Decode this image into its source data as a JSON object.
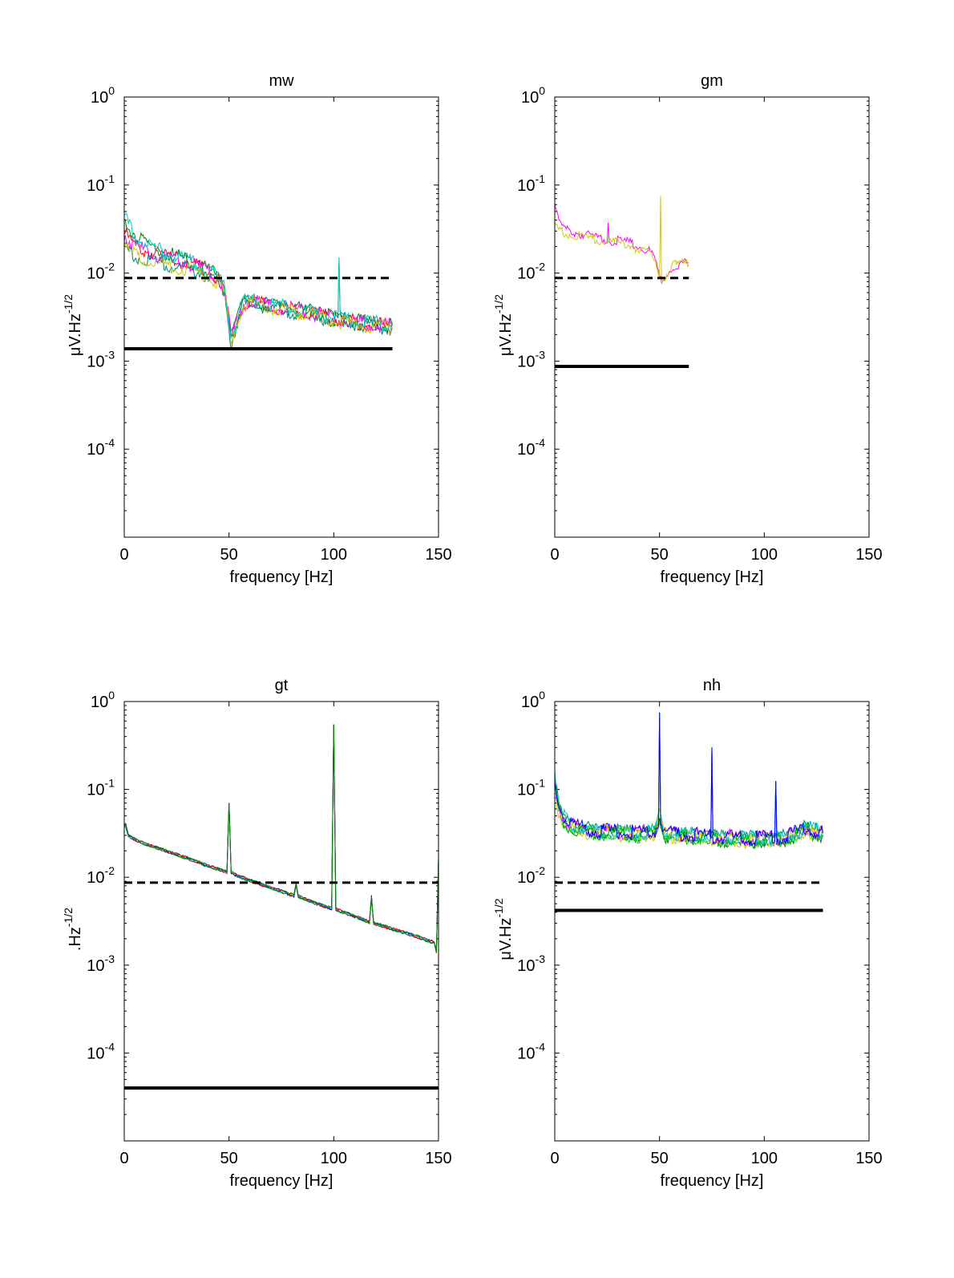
{
  "figure": {
    "line_colors": [
      "#ff0000",
      "#ff00ff",
      "#00cc00",
      "#008080",
      "#cccc00",
      "#0000ff",
      "#008000",
      "#00cccc"
    ]
  },
  "chart_data": [
    {
      "type": "line",
      "title": "mw",
      "xlabel": "frequency [Hz]",
      "ylabel": "μV.Hz-1/2",
      "ylabel_parts": [
        "μV.Hz",
        "-1/2"
      ],
      "xlim": [
        0,
        150
      ],
      "ylim": [
        1e-05,
        1
      ],
      "yscale": "log",
      "xticks": [
        0,
        50,
        100,
        150
      ],
      "yticks": [
        {
          "base": "10",
          "exp": "0"
        },
        {
          "base": "10",
          "exp": "-1"
        },
        {
          "base": "10",
          "exp": "-2"
        },
        {
          "base": "10",
          "exp": "-3"
        },
        {
          "base": "10",
          "exp": "-4"
        }
      ],
      "ytick_values": [
        1,
        0.1,
        0.01,
        0.001,
        0.0001
      ],
      "grid": false,
      "reference_lines": [
        {
          "style": "dashed",
          "value": 0.0088,
          "x": [
            0,
            128
          ]
        },
        {
          "style": "solid",
          "value": 0.00138,
          "x": [
            0,
            128
          ]
        }
      ],
      "series": [
        {
          "x": [
            0,
            2,
            5,
            10,
            15,
            20,
            25,
            30,
            35,
            40,
            45,
            48,
            50,
            51,
            52,
            54,
            57,
            60,
            65,
            70,
            80,
            90,
            100,
            110,
            120,
            128
          ],
          "values": [
            0.028,
            0.025,
            0.021,
            0.018,
            0.0165,
            0.0155,
            0.0145,
            0.0132,
            0.0118,
            0.0105,
            0.0085,
            0.006,
            0.0028,
            0.0018,
            0.002,
            0.003,
            0.0046,
            0.0048,
            0.0045,
            0.0042,
            0.0039,
            0.0035,
            0.0031,
            0.0028,
            0.0026,
            0.0025
          ]
        },
        {
          "x": [
            0,
            2,
            5,
            10,
            15,
            20,
            25,
            30,
            35,
            40,
            45,
            48,
            50,
            51,
            52,
            54,
            57,
            60,
            65,
            70,
            80,
            90,
            100,
            110,
            120,
            128
          ],
          "values": [
            0.02,
            0.018,
            0.016,
            0.0145,
            0.013,
            0.0125,
            0.0118,
            0.0112,
            0.0102,
            0.0095,
            0.0078,
            0.0055,
            0.0024,
            0.0015,
            0.0019,
            0.0029,
            0.0043,
            0.0046,
            0.0043,
            0.004,
            0.0037,
            0.0033,
            0.0029,
            0.0027,
            0.0025,
            0.0024
          ]
        },
        {
          "x": [
            0,
            2,
            5,
            10,
            15,
            20,
            25,
            30,
            35,
            40,
            45,
            48,
            50,
            51,
            52,
            54,
            57,
            60,
            65,
            70,
            80,
            90,
            100,
            102,
            102.5,
            103,
            110,
            120,
            128
          ],
          "values": [
            0.045,
            0.035,
            0.028,
            0.022,
            0.019,
            0.017,
            0.0155,
            0.014,
            0.0125,
            0.011,
            0.009,
            0.0065,
            0.003,
            0.002,
            0.0022,
            0.0032,
            0.0048,
            0.005,
            0.0047,
            0.0044,
            0.004,
            0.0036,
            0.0032,
            0.0031,
            0.015,
            0.0031,
            0.0029,
            0.0027,
            0.0026
          ]
        }
      ]
    },
    {
      "type": "line",
      "title": "gm",
      "xlabel": "frequency [Hz]",
      "ylabel": "μV.Hz-1/2",
      "ylabel_parts": [
        "μV.Hz",
        "-1/2"
      ],
      "xlim": [
        0,
        150
      ],
      "ylim": [
        1e-05,
        1
      ],
      "yscale": "log",
      "xticks": [
        0,
        50,
        100,
        150
      ],
      "yticks": [
        {
          "base": "10",
          "exp": "0"
        },
        {
          "base": "10",
          "exp": "-1"
        },
        {
          "base": "10",
          "exp": "-2"
        },
        {
          "base": "10",
          "exp": "-3"
        },
        {
          "base": "10",
          "exp": "-4"
        }
      ],
      "ytick_values": [
        1,
        0.1,
        0.01,
        0.001,
        0.0001
      ],
      "grid": false,
      "reference_lines": [
        {
          "style": "dashed",
          "value": 0.0088,
          "x": [
            0,
            64
          ]
        },
        {
          "style": "solid",
          "value": 0.00087,
          "x": [
            0,
            64
          ]
        }
      ],
      "series": [
        {
          "x": [
            0,
            1,
            3,
            5,
            10,
            15,
            20,
            25,
            25.5,
            26,
            30,
            35,
            40,
            45,
            48,
            50,
            51,
            52,
            54,
            57,
            60,
            64
          ],
          "values": [
            0.06,
            0.045,
            0.035,
            0.032,
            0.029,
            0.027,
            0.025,
            0.024,
            0.04,
            0.024,
            0.023,
            0.022,
            0.02,
            0.018,
            0.014,
            0.009,
            0.0075,
            0.0085,
            0.01,
            0.012,
            0.013,
            0.013
          ]
        },
        {
          "x": [
            0,
            1,
            3,
            5,
            10,
            15,
            20,
            25,
            30,
            35,
            40,
            45,
            48,
            50,
            50.5,
            51,
            52,
            54,
            57,
            60,
            64
          ],
          "values": [
            0.035,
            0.032,
            0.03,
            0.029,
            0.027,
            0.025,
            0.024,
            0.023,
            0.022,
            0.021,
            0.019,
            0.017,
            0.013,
            0.009,
            0.075,
            0.0085,
            0.0088,
            0.0105,
            0.0122,
            0.0128,
            0.0125
          ]
        }
      ]
    },
    {
      "type": "line",
      "title": "gt",
      "xlabel": "frequency [Hz]",
      "ylabel": ".Hz-1/2",
      "ylabel_parts": [
        ".Hz",
        "-1/2"
      ],
      "xlim": [
        0,
        150
      ],
      "ylim": [
        1e-05,
        1
      ],
      "yscale": "log",
      "xticks": [
        0,
        50,
        100,
        150
      ],
      "yticks": [
        {
          "base": "10",
          "exp": "0"
        },
        {
          "base": "10",
          "exp": "-1"
        },
        {
          "base": "10",
          "exp": "-2"
        },
        {
          "base": "10",
          "exp": "-3"
        },
        {
          "base": "10",
          "exp": "-4"
        }
      ],
      "ytick_values": [
        1,
        0.1,
        0.01,
        0.001,
        0.0001
      ],
      "grid": false,
      "reference_lines": [
        {
          "style": "dashed",
          "value": 0.0087,
          "x": [
            0,
            150
          ]
        },
        {
          "style": "solid",
          "value": 4e-05,
          "x": [
            0,
            150
          ]
        }
      ],
      "series": [
        {
          "x": [
            0,
            0.5,
            2,
            5,
            10,
            20,
            30,
            40,
            49,
            50,
            51,
            55,
            60,
            70,
            81,
            82,
            83,
            90,
            99,
            100,
            101,
            110,
            117,
            118,
            119,
            130,
            140,
            148,
            149,
            150
          ],
          "values": [
            0.038,
            0.04,
            0.03,
            0.027,
            0.024,
            0.02,
            0.0165,
            0.0135,
            0.0115,
            0.07,
            0.0113,
            0.0102,
            0.0092,
            0.0076,
            0.0062,
            0.0085,
            0.0061,
            0.0052,
            0.0044,
            0.55,
            0.0043,
            0.0036,
            0.0031,
            0.006,
            0.003,
            0.0025,
            0.0021,
            0.0018,
            0.0014,
            0.016
          ]
        }
      ]
    },
    {
      "type": "line",
      "title": "nh",
      "xlabel": "frequency [Hz]",
      "ylabel": "μV.Hz-1/2",
      "ylabel_parts": [
        "μV.Hz",
        "-1/2"
      ],
      "xlim": [
        0,
        150
      ],
      "ylim": [
        1e-05,
        1
      ],
      "yscale": "log",
      "xticks": [
        0,
        50,
        100,
        150
      ],
      "yticks": [
        {
          "base": "10",
          "exp": "0"
        },
        {
          "base": "10",
          "exp": "-1"
        },
        {
          "base": "10",
          "exp": "-2"
        },
        {
          "base": "10",
          "exp": "-3"
        },
        {
          "base": "10",
          "exp": "-4"
        }
      ],
      "ytick_values": [
        1,
        0.1,
        0.01,
        0.001,
        0.0001
      ],
      "grid": false,
      "reference_lines": [
        {
          "style": "dashed",
          "value": 0.0087,
          "x": [
            0,
            128
          ]
        },
        {
          "style": "solid",
          "value": 0.0042,
          "x": [
            0,
            128
          ]
        }
      ],
      "series": [
        {
          "x": [
            0,
            1,
            2,
            4,
            7,
            10,
            15,
            20,
            30,
            40,
            48,
            49.5,
            50,
            50.5,
            52,
            60,
            70,
            74.5,
            75,
            75.5,
            80,
            90,
            100,
            105,
            105.5,
            106,
            110,
            115,
            120,
            125,
            128
          ],
          "values": [
            0.14,
            0.09,
            0.065,
            0.05,
            0.042,
            0.038,
            0.036,
            0.034,
            0.033,
            0.032,
            0.034,
            0.045,
            0.75,
            0.045,
            0.032,
            0.031,
            0.03,
            0.029,
            0.3,
            0.029,
            0.029,
            0.028,
            0.028,
            0.028,
            0.125,
            0.028,
            0.029,
            0.032,
            0.037,
            0.034,
            0.032
          ]
        },
        {
          "x": [
            0,
            1,
            2,
            4,
            7,
            10,
            15,
            20,
            30,
            40,
            48,
            50,
            52,
            60,
            70,
            80,
            90,
            100,
            110,
            115,
            120,
            125,
            128
          ],
          "values": [
            0.11,
            0.075,
            0.056,
            0.045,
            0.038,
            0.035,
            0.033,
            0.032,
            0.031,
            0.03,
            0.031,
            0.05,
            0.03,
            0.029,
            0.028,
            0.027,
            0.026,
            0.026,
            0.027,
            0.03,
            0.034,
            0.031,
            0.03
          ]
        }
      ]
    }
  ]
}
